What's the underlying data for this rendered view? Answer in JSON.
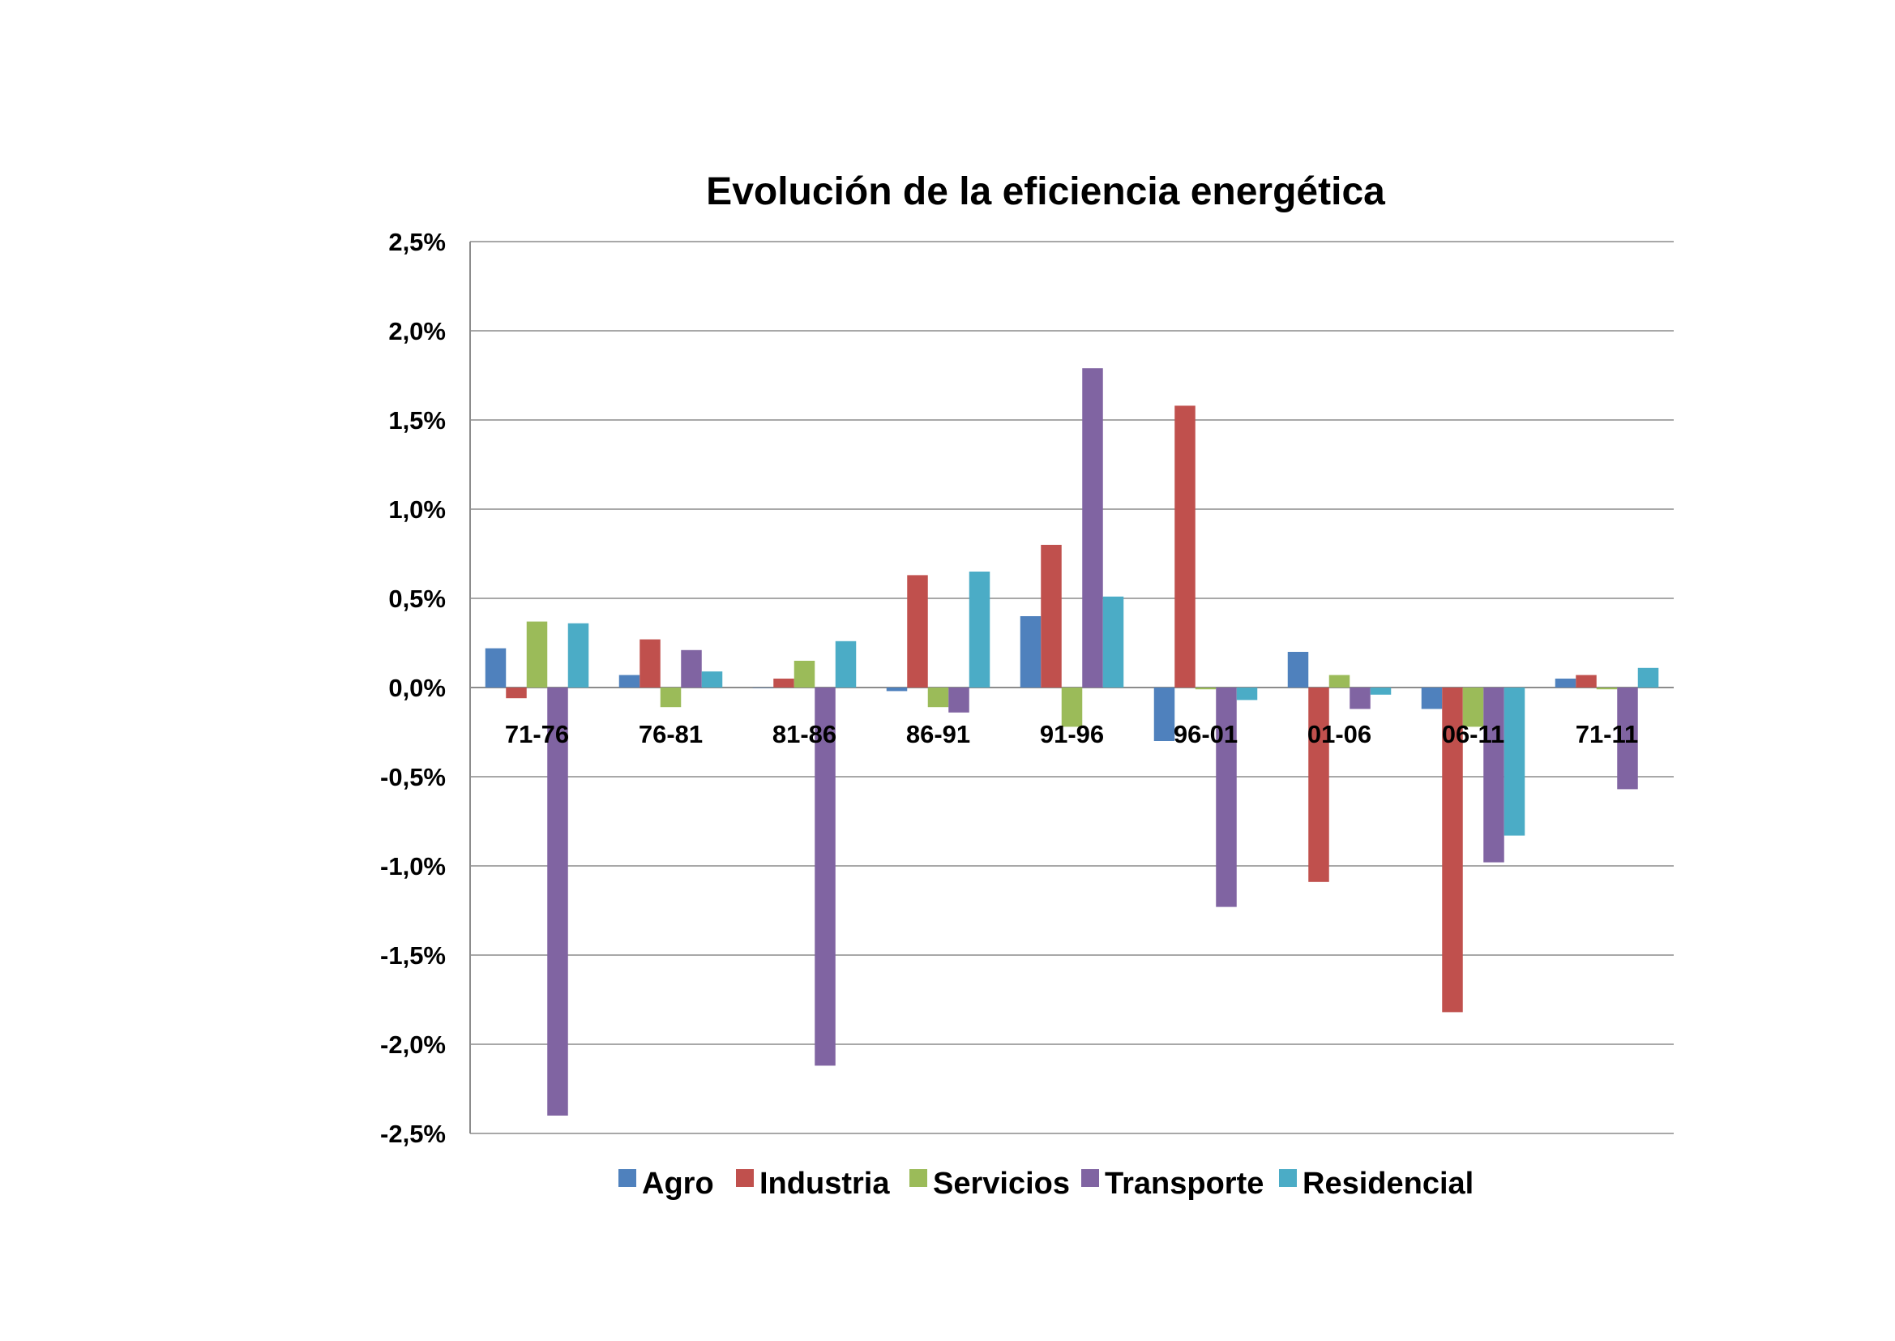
{
  "chart_data": {
    "type": "bar",
    "title": "Evolución de la eficiencia energética",
    "xlabel": "",
    "ylabel": "",
    "ylim": [
      -2.5,
      2.5
    ],
    "y_ticks": [
      "2,5%",
      "2,0%",
      "1,5%",
      "1,0%",
      "0,5%",
      "0,0%",
      "-0,5%",
      "-1,0%",
      "-1,5%",
      "-2,0%",
      "-2,5%"
    ],
    "grid": true,
    "legend_position": "bottom",
    "categories": [
      "71-76",
      "76-81",
      "81-86",
      "86-91",
      "91-96",
      "96-01",
      "01-06",
      "06-11",
      "71-11"
    ],
    "series": [
      {
        "name": "Agro",
        "color": "#4F81BD",
        "values": [
          0.22,
          0.07,
          0.0,
          -0.02,
          0.4,
          -0.3,
          0.2,
          -0.12,
          0.05
        ]
      },
      {
        "name": "Industria",
        "color": "#C0504D",
        "values": [
          -0.06,
          0.27,
          0.05,
          0.63,
          0.8,
          1.58,
          -1.09,
          -1.82,
          0.07
        ]
      },
      {
        "name": "Servicios",
        "color": "#9BBB59",
        "values": [
          0.37,
          -0.11,
          0.15,
          -0.11,
          -0.22,
          -0.01,
          0.07,
          -0.22,
          -0.01
        ]
      },
      {
        "name": "Transporte",
        "color": "#8064A2",
        "values": [
          -2.4,
          0.21,
          -2.12,
          -0.14,
          1.79,
          -1.23,
          -0.12,
          -0.98,
          -0.57
        ]
      },
      {
        "name": "Residencial",
        "color": "#4BACC6",
        "values": [
          0.36,
          0.09,
          0.26,
          0.65,
          0.51,
          -0.07,
          -0.04,
          -0.83,
          0.11
        ]
      }
    ]
  }
}
